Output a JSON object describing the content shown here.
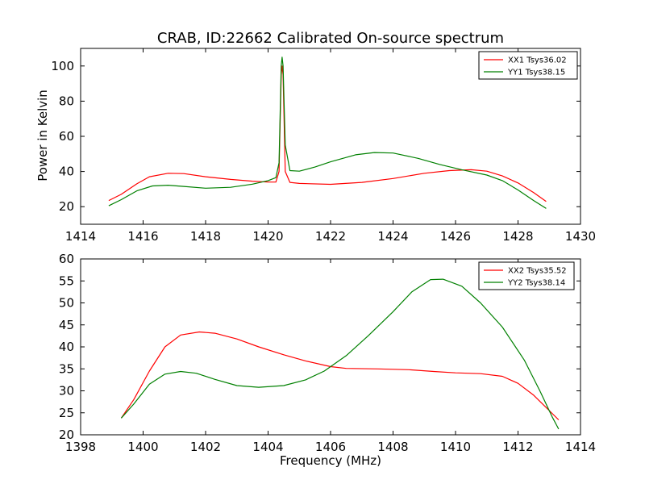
{
  "chart_data": [
    {
      "type": "line",
      "title": "CRAB, ID:22662 Calibrated On-source spectrum",
      "xlabel": "",
      "ylabel": "Power in Kelvin",
      "xlim": [
        1414,
        1430
      ],
      "ylim": [
        10,
        110
      ],
      "xticks": [
        1414,
        1416,
        1418,
        1420,
        1422,
        1424,
        1426,
        1428,
        1430
      ],
      "yticks": [
        20,
        40,
        60,
        80,
        100
      ],
      "legend_position": "top-right",
      "series": [
        {
          "name": "XX1 Tsys36.02",
          "color": "#ff0000",
          "points": [
            [
              1414.9,
              23.5
            ],
            [
              1415.3,
              27
            ],
            [
              1415.8,
              33
            ],
            [
              1416.2,
              37
            ],
            [
              1416.8,
              39
            ],
            [
              1417.3,
              38.8
            ],
            [
              1418,
              37
            ],
            [
              1418.8,
              35.5
            ],
            [
              1419.5,
              34.5
            ],
            [
              1420.0,
              34
            ],
            [
              1420.25,
              34
            ],
            [
              1420.35,
              40
            ],
            [
              1420.42,
              95
            ],
            [
              1420.45,
              100
            ],
            [
              1420.48,
              95
            ],
            [
              1420.55,
              40
            ],
            [
              1420.7,
              33.8
            ],
            [
              1421,
              33.2
            ],
            [
              1422,
              32.7
            ],
            [
              1423,
              33.8
            ],
            [
              1424,
              36
            ],
            [
              1425,
              39
            ],
            [
              1425.8,
              40.5
            ],
            [
              1426.5,
              41
            ],
            [
              1427,
              40.2
            ],
            [
              1427.5,
              37.5
            ],
            [
              1428,
              33.5
            ],
            [
              1428.5,
              28
            ],
            [
              1428.9,
              23
            ]
          ]
        },
        {
          "name": "YY1 Tsys38.15",
          "color": "#008000",
          "points": [
            [
              1414.9,
              20.5
            ],
            [
              1415.3,
              24
            ],
            [
              1415.8,
              29
            ],
            [
              1416.3,
              31.8
            ],
            [
              1416.8,
              32.2
            ],
            [
              1417.3,
              31.5
            ],
            [
              1418,
              30.5
            ],
            [
              1418.8,
              31
            ],
            [
              1419.5,
              32.8
            ],
            [
              1420.0,
              34.8
            ],
            [
              1420.25,
              36.5
            ],
            [
              1420.35,
              45
            ],
            [
              1420.42,
              100
            ],
            [
              1420.45,
              105
            ],
            [
              1420.48,
              100
            ],
            [
              1420.55,
              55
            ],
            [
              1420.7,
              40.5
            ],
            [
              1421,
              40.2
            ],
            [
              1421.5,
              42.5
            ],
            [
              1422,
              45.5
            ],
            [
              1422.8,
              49.5
            ],
            [
              1423.4,
              50.8
            ],
            [
              1424,
              50.5
            ],
            [
              1424.8,
              47.5
            ],
            [
              1425.5,
              44
            ],
            [
              1426.2,
              41
            ],
            [
              1427,
              38
            ],
            [
              1427.5,
              34.8
            ],
            [
              1428,
              29.5
            ],
            [
              1428.5,
              23.5
            ],
            [
              1428.9,
              19
            ]
          ]
        }
      ]
    },
    {
      "type": "line",
      "title": "",
      "xlabel": "Frequency (MHz)",
      "ylabel": "",
      "xlim": [
        1398,
        1414
      ],
      "ylim": [
        20,
        60
      ],
      "xticks": [
        1398,
        1400,
        1402,
        1404,
        1406,
        1408,
        1410,
        1412,
        1414
      ],
      "yticks": [
        20,
        25,
        30,
        35,
        40,
        45,
        50,
        55,
        60
      ],
      "legend_position": "top-right",
      "series": [
        {
          "name": "XX2 Tsys35.52",
          "color": "#ff0000",
          "points": [
            [
              1399.3,
              23.8
            ],
            [
              1399.7,
              28
            ],
            [
              1400.2,
              34.5
            ],
            [
              1400.7,
              40
            ],
            [
              1401.2,
              42.7
            ],
            [
              1401.8,
              43.4
            ],
            [
              1402.3,
              43.1
            ],
            [
              1403,
              41.8
            ],
            [
              1403.7,
              40
            ],
            [
              1404.5,
              38.2
            ],
            [
              1405.2,
              36.8
            ],
            [
              1406,
              35.5
            ],
            [
              1406.5,
              35.1
            ],
            [
              1407.5,
              35
            ],
            [
              1408.5,
              34.8
            ],
            [
              1409.3,
              34.4
            ],
            [
              1410,
              34.1
            ],
            [
              1410.8,
              33.9
            ],
            [
              1411.5,
              33.3
            ],
            [
              1412,
              31.7
            ],
            [
              1412.5,
              29
            ],
            [
              1413,
              25.5
            ],
            [
              1413.3,
              23.4
            ]
          ]
        },
        {
          "name": "YY2 Tsys38.14",
          "color": "#008000",
          "points": [
            [
              1399.3,
              23.8
            ],
            [
              1399.7,
              27
            ],
            [
              1400.2,
              31.5
            ],
            [
              1400.7,
              33.8
            ],
            [
              1401.2,
              34.4
            ],
            [
              1401.7,
              34
            ],
            [
              1402.3,
              32.6
            ],
            [
              1403,
              31.2
            ],
            [
              1403.7,
              30.8
            ],
            [
              1404.5,
              31.2
            ],
            [
              1405.2,
              32.5
            ],
            [
              1405.8,
              34.5
            ],
            [
              1406.5,
              38
            ],
            [
              1407.2,
              42.5
            ],
            [
              1408,
              48
            ],
            [
              1408.6,
              52.5
            ],
            [
              1409.2,
              55.3
            ],
            [
              1409.6,
              55.4
            ],
            [
              1410.2,
              53.8
            ],
            [
              1410.8,
              50
            ],
            [
              1411.5,
              44.5
            ],
            [
              1412.2,
              37
            ],
            [
              1412.7,
              30
            ],
            [
              1413.1,
              24
            ],
            [
              1413.3,
              21.3
            ]
          ]
        }
      ]
    }
  ]
}
